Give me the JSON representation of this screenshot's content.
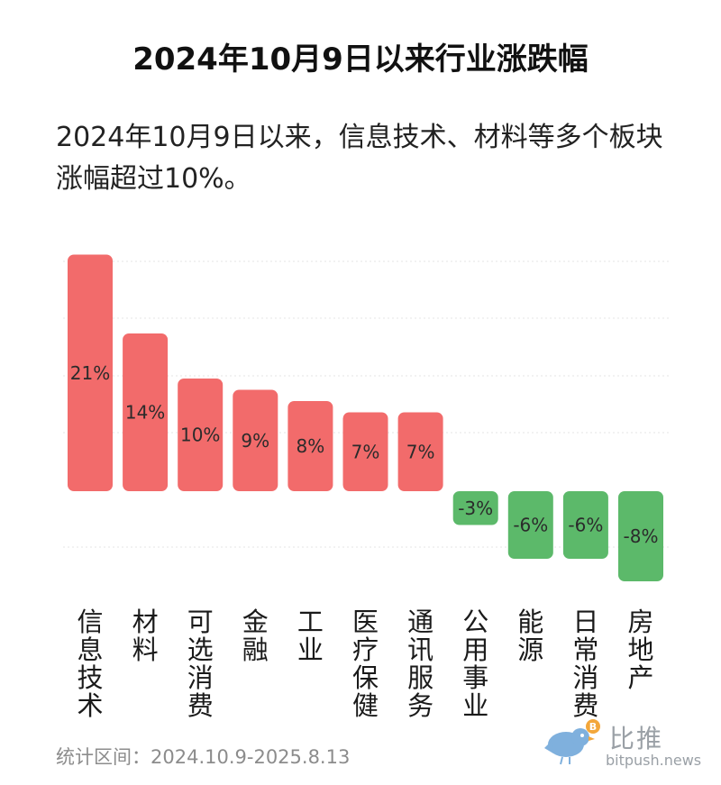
{
  "title": "2024年10月9日以来行业涨跌幅",
  "subtitle": "2024年10月9日以来，信息技术、材料等多个板块涨幅超过10%。",
  "footer": "统计区间：2024.10.9-2025.8.13",
  "brand": {
    "name": "比推",
    "url": "bitpush.news",
    "logo_icon": "bird-bitcoin-icon"
  },
  "colors": {
    "positive": "#f26b6b",
    "negative": "#5cb96a"
  },
  "chart_data": {
    "type": "bar",
    "categories": [
      "信息技术",
      "材料",
      "可选消费",
      "金融",
      "工业",
      "医疗保健",
      "通讯服务",
      "公用事业",
      "能源",
      "日常消费",
      "房地产"
    ],
    "values": [
      21,
      14,
      10,
      9,
      8,
      7,
      7,
      -3,
      -6,
      -6,
      -8
    ],
    "labels": [
      "21%",
      "14%",
      "10%",
      "9%",
      "8%",
      "7%",
      "7%",
      "-3%",
      "-6%",
      "-6%",
      "-8%"
    ],
    "unit": "%",
    "ylim": [
      -10,
      21
    ],
    "grid": true,
    "xlabel": "",
    "ylabel": ""
  }
}
